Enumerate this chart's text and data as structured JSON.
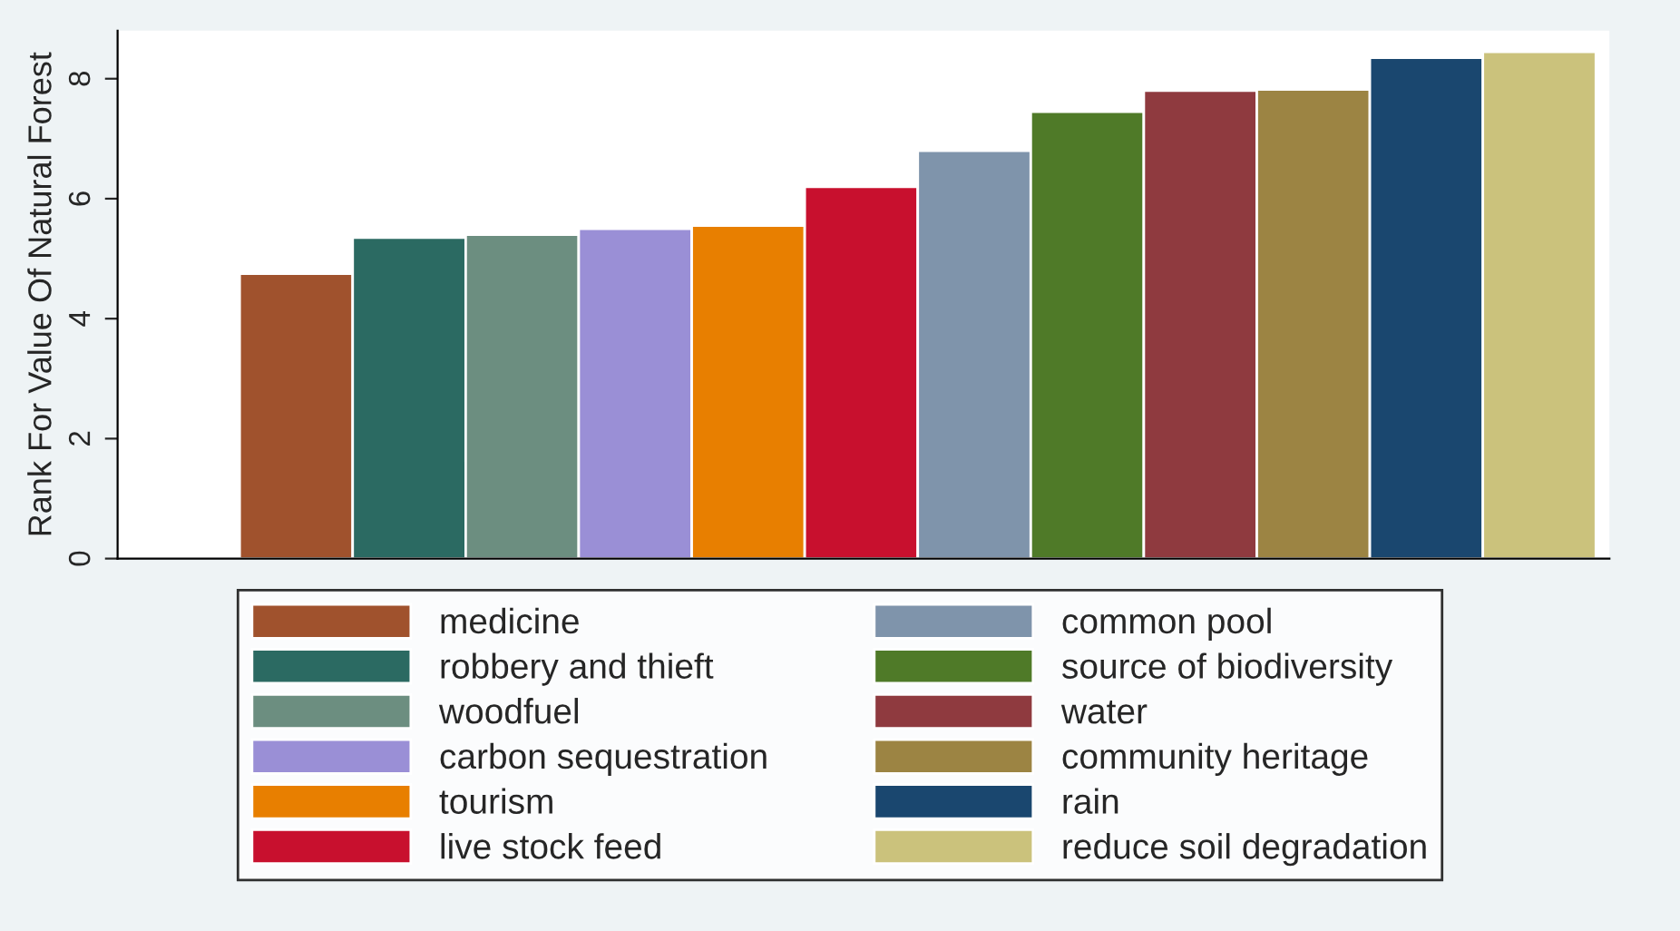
{
  "chart_data": {
    "type": "bar",
    "ylabel": "Rank For Value Of Natural Forest",
    "categories": [
      null
    ],
    "tick_labels": "y",
    "ylim": [
      0,
      8.8
    ],
    "yticks": [
      0,
      2,
      4,
      6,
      8
    ],
    "grid": false,
    "legend": "bottom",
    "series": [
      {
        "name": "medicine",
        "color": "#a0522d",
        "values": [
          4.75
        ]
      },
      {
        "name": "robbery and thieft",
        "color": "#2b6a62",
        "values": [
          5.35
        ]
      },
      {
        "name": "woodfuel",
        "color": "#6c8e80",
        "values": [
          5.4
        ]
      },
      {
        "name": "carbon sequestration",
        "color": "#9a8fd6",
        "values": [
          5.5
        ]
      },
      {
        "name": "tourism",
        "color": "#e87f00",
        "values": [
          5.55
        ]
      },
      {
        "name": "live stock feed",
        "color": "#c8102e",
        "values": [
          6.2
        ]
      },
      {
        "name": "common pool",
        "color": "#7f94ab",
        "values": [
          6.8
        ]
      },
      {
        "name": "source of biodiversity",
        "color": "#4f7a28",
        "values": [
          7.45
        ]
      },
      {
        "name": "water",
        "color": "#8f3a3f",
        "values": [
          7.8
        ]
      },
      {
        "name": "community heritage",
        "color": "#9c8443",
        "values": [
          7.82
        ]
      },
      {
        "name": "rain",
        "color": "#1a476f",
        "values": [
          8.35
        ]
      },
      {
        "name": "reduce soil degradation",
        "color": "#cbc27c",
        "values": [
          8.45
        ]
      }
    ]
  }
}
